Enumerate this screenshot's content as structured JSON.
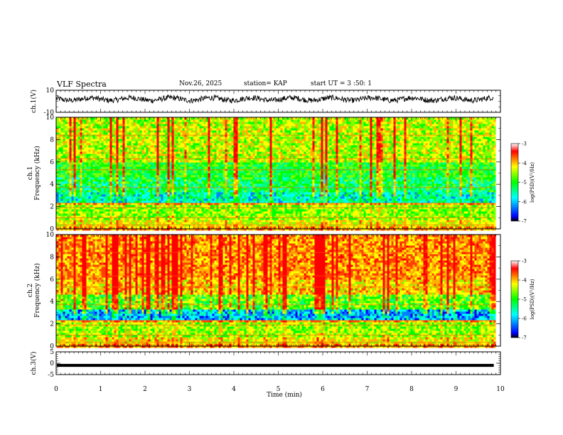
{
  "header": {
    "title": "VLF Spectra",
    "date": "Nov.26, 2025",
    "station": "station= KAP",
    "start": "start  UT  =   3  :50: 1"
  },
  "chart_data": [
    {
      "type": "line",
      "id": "ch1-waveform",
      "ylabel": "ch.1(V)",
      "ylim": [
        -10,
        10
      ],
      "yticks": [
        "10",
        "-10"
      ],
      "xlim": [
        0,
        10
      ],
      "x_extent_min": 9.85,
      "description_series": "noisy waveform centered near +2 V, amplitude about ±3 V"
    },
    {
      "type": "heatmap",
      "id": "ch1-spectrogram",
      "ylabel": "ch.1",
      "ylabel2": "Frequency  (kHz)",
      "ylim": [
        0,
        10
      ],
      "yticks": [
        "0",
        "2",
        "4",
        "6",
        "8",
        "10"
      ],
      "xlim": [
        0,
        10
      ],
      "x_extent_min": 9.85,
      "colorbar": {
        "label": "log(PSD)(V²/Hz)",
        "ticks": [
          "-3",
          "-4",
          "-5",
          "-6",
          "-7"
        ],
        "range": [
          -7,
          -3
        ]
      }
    },
    {
      "type": "heatmap",
      "id": "ch2-spectrogram",
      "ylabel": "ch.2",
      "ylabel2": "Frequency  (kHz)",
      "ylim": [
        0,
        10
      ],
      "yticks": [
        "0",
        "2",
        "4",
        "6",
        "8",
        "10"
      ],
      "xlim": [
        0,
        10
      ],
      "x_extent_min": 9.85,
      "colorbar": {
        "label": "log(PSD)(V²/Hz)",
        "ticks": [
          "-3",
          "-4",
          "-5",
          "-6",
          "-7"
        ],
        "range": [
          -7,
          -3
        ]
      }
    },
    {
      "type": "line",
      "id": "ch3-waveform",
      "ylabel": "ch.3(V)",
      "ylim": [
        -5,
        5
      ],
      "yticks": [
        "5",
        "0",
        "-5"
      ],
      "xlim": [
        0,
        10
      ],
      "x_extent_min": 9.85,
      "description_series": "flat level near -1 V drawn as thick band"
    }
  ],
  "xaxis": {
    "label": "Time  (min)",
    "ticks": [
      "0",
      "1",
      "2",
      "3",
      "4",
      "5",
      "6",
      "7",
      "8",
      "9",
      "10"
    ]
  },
  "colors": {
    "axes": "#000000",
    "trace": "#000000",
    "colormap": [
      "#000000",
      "#0000ff",
      "#00ffff",
      "#00ff00",
      "#ffff00",
      "#ff0000",
      "#ffffff"
    ]
  }
}
